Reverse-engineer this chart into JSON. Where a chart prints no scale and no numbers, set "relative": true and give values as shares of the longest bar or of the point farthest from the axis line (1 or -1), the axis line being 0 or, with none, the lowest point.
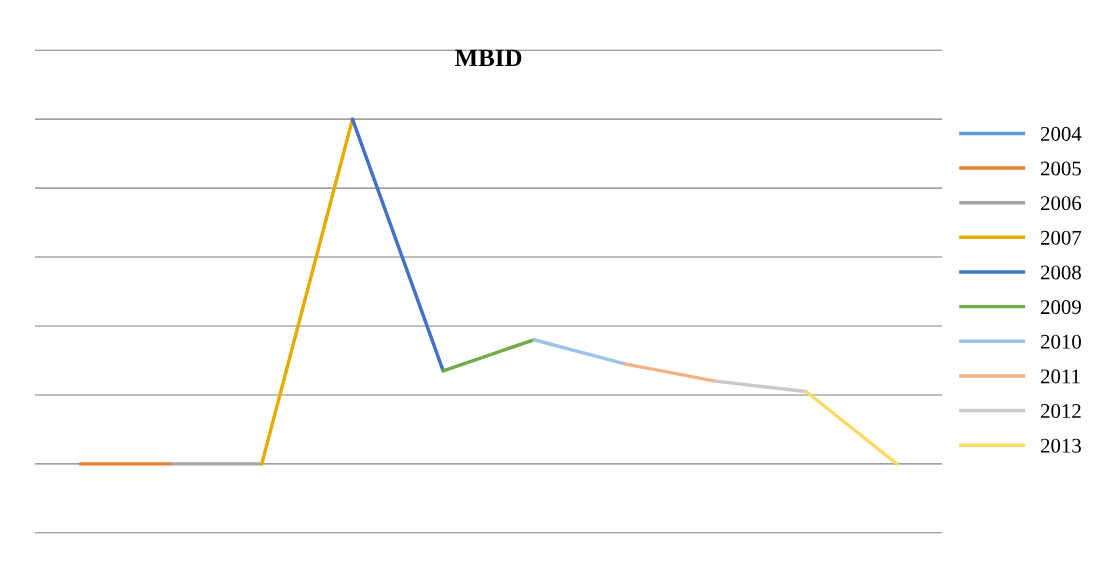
{
  "chart_data": {
    "type": "line",
    "title": "MBID",
    "relative": true,
    "grid": "y",
    "legend": "right",
    "tick_labels": false,
    "categories": [
      null,
      null,
      null,
      null,
      null,
      null,
      null,
      null,
      null,
      null
    ],
    "series": [
      {
        "name": "2004",
        "color": "#5b9bd5",
        "values": [
          null,
          null,
          null,
          null,
          null,
          null,
          null,
          null,
          null,
          null
        ]
      },
      {
        "name": "2005",
        "color": "#ed7d31",
        "values": [
          0,
          0,
          null,
          null,
          null,
          null,
          null,
          null,
          null,
          null
        ]
      },
      {
        "name": "2006",
        "color": "#a5a5a5",
        "values": [
          null,
          0,
          0,
          null,
          null,
          null,
          null,
          null,
          null,
          null
        ]
      },
      {
        "name": "2007",
        "color": "#e5ac00",
        "values": [
          null,
          null,
          0,
          1,
          null,
          null,
          null,
          null,
          null,
          null
        ]
      },
      {
        "name": "2008",
        "color": "#4472c4",
        "values": [
          null,
          null,
          null,
          1,
          0.27,
          null,
          null,
          null,
          null,
          null
        ]
      },
      {
        "name": "2009",
        "color": "#70ad47",
        "values": [
          null,
          null,
          null,
          null,
          0.27,
          0.36,
          null,
          null,
          null,
          null
        ]
      },
      {
        "name": "2010",
        "color": "#9dc3e6",
        "values": [
          null,
          null,
          null,
          null,
          null,
          0.36,
          0.29,
          null,
          null,
          null
        ]
      },
      {
        "name": "2011",
        "color": "#f4b183",
        "values": [
          null,
          null,
          null,
          null,
          null,
          null,
          0.29,
          0.24,
          null,
          null
        ]
      },
      {
        "name": "2012",
        "color": "#c9c9c9",
        "values": [
          null,
          null,
          null,
          null,
          null,
          null,
          null,
          0.24,
          0.21,
          null
        ]
      },
      {
        "name": "2013",
        "color": "#ffd966",
        "values": [
          null,
          null,
          null,
          null,
          null,
          null,
          null,
          null,
          0.21,
          0
        ]
      }
    ]
  }
}
